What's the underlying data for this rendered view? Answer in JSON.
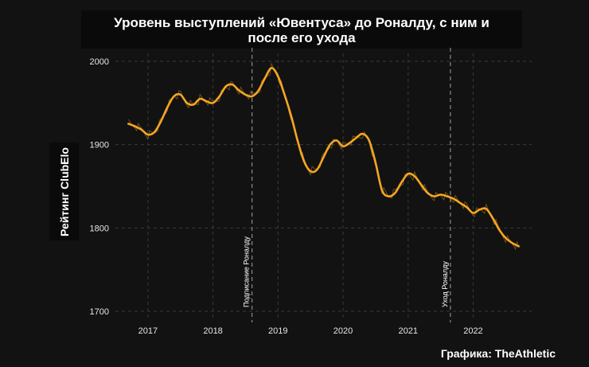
{
  "chart_data": {
    "type": "line",
    "title": "Уровень выступлений «Ювентуса» до Роналду, с ним и после его ухода",
    "ylabel": "Рейтинг ClubElo",
    "xlabel": "",
    "ylim": [
      1700,
      2000
    ],
    "yticks": [
      1700,
      1800,
      1900,
      2000
    ],
    "xticks": [
      2017,
      2018,
      2019,
      2020,
      2021,
      2022
    ],
    "grid": true,
    "annotations": [
      {
        "label": "Подписание Роналду",
        "x": 2018.6
      },
      {
        "label": "Уход Роналду",
        "x": 2021.65
      }
    ],
    "series": [
      {
        "color": "#f5a623",
        "x": [
          2016.7,
          2016.8,
          2016.9,
          2017.0,
          2017.1,
          2017.2,
          2017.3,
          2017.4,
          2017.5,
          2017.6,
          2017.7,
          2017.8,
          2017.9,
          2018.0,
          2018.1,
          2018.2,
          2018.3,
          2018.4,
          2018.5,
          2018.6,
          2018.7,
          2018.8,
          2018.9,
          2019.0,
          2019.1,
          2019.2,
          2019.3,
          2019.4,
          2019.5,
          2019.6,
          2019.7,
          2019.8,
          2019.9,
          2020.0,
          2020.1,
          2020.2,
          2020.3,
          2020.4,
          2020.5,
          2020.6,
          2020.7,
          2020.8,
          2020.9,
          2021.0,
          2021.1,
          2021.2,
          2021.3,
          2021.4,
          2021.5,
          2021.6,
          2021.7,
          2021.8,
          2021.9,
          2022.0,
          2022.1,
          2022.2,
          2022.3,
          2022.4,
          2022.5,
          2022.6,
          2022.7
        ],
        "values": [
          1925,
          1922,
          1918,
          1912,
          1915,
          1928,
          1945,
          1958,
          1960,
          1950,
          1948,
          1955,
          1952,
          1950,
          1958,
          1970,
          1972,
          1965,
          1960,
          1958,
          1965,
          1980,
          1992,
          1982,
          1960,
          1935,
          1905,
          1880,
          1868,
          1870,
          1885,
          1900,
          1905,
          1898,
          1902,
          1908,
          1913,
          1905,
          1878,
          1845,
          1838,
          1842,
          1855,
          1865,
          1862,
          1852,
          1842,
          1838,
          1840,
          1838,
          1835,
          1830,
          1825,
          1818,
          1822,
          1823,
          1812,
          1798,
          1788,
          1782,
          1778
        ]
      }
    ]
  },
  "credit": "Графика: TheAthletic"
}
